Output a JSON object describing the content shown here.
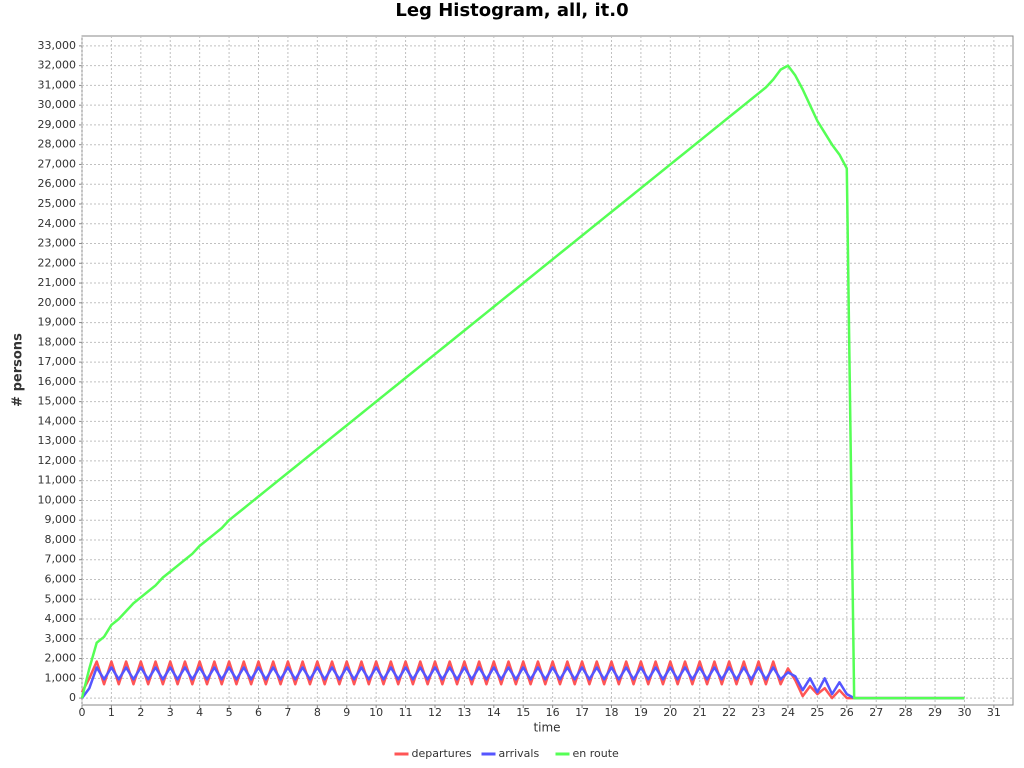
{
  "chart_data": {
    "type": "line",
    "title": "Leg Histogram, all, it.0",
    "x_label": "time",
    "y_label": "# persons",
    "x": [
      0,
      0.25,
      0.5,
      0.75,
      1,
      1.25,
      1.5,
      1.75,
      2,
      2.25,
      2.5,
      2.75,
      3,
      3.25,
      3.5,
      3.75,
      4,
      4.25,
      4.5,
      4.75,
      5,
      5.25,
      5.5,
      5.75,
      6,
      6.25,
      6.5,
      6.75,
      7,
      7.25,
      7.5,
      7.75,
      8,
      8.25,
      8.5,
      8.75,
      9,
      9.25,
      9.5,
      9.75,
      10,
      10.25,
      10.5,
      10.75,
      11,
      11.25,
      11.5,
      11.75,
      12,
      12.25,
      12.5,
      12.75,
      13,
      13.25,
      13.5,
      13.75,
      14,
      14.25,
      14.5,
      14.75,
      15,
      15.25,
      15.5,
      15.75,
      16,
      16.25,
      16.5,
      16.75,
      17,
      17.25,
      17.5,
      17.75,
      18,
      18.25,
      18.5,
      18.75,
      19,
      19.25,
      19.5,
      19.75,
      20,
      20.25,
      20.5,
      20.75,
      21,
      21.25,
      21.5,
      21.75,
      22,
      22.25,
      22.5,
      22.75,
      23,
      23.25,
      23.5,
      23.75,
      24,
      24.25,
      24.5,
      24.75,
      25,
      25.25,
      25.5,
      25.75,
      26,
      26.25,
      30
    ],
    "series": [
      {
        "name": "departures",
        "color": "#ff5555",
        "values": [
          300,
          1000,
          1850,
          700,
          1850,
          700,
          1850,
          700,
          1850,
          700,
          1850,
          700,
          1850,
          700,
          1850,
          700,
          1850,
          700,
          1850,
          700,
          1850,
          700,
          1850,
          700,
          1850,
          700,
          1850,
          700,
          1850,
          700,
          1850,
          700,
          1850,
          700,
          1850,
          700,
          1850,
          700,
          1850,
          700,
          1850,
          700,
          1850,
          700,
          1850,
          700,
          1850,
          700,
          1850,
          700,
          1850,
          700,
          1850,
          700,
          1850,
          700,
          1850,
          700,
          1850,
          700,
          1850,
          700,
          1850,
          700,
          1850,
          700,
          1850,
          700,
          1850,
          700,
          1850,
          700,
          1850,
          700,
          1850,
          700,
          1850,
          700,
          1850,
          700,
          1850,
          700,
          1850,
          700,
          1850,
          700,
          1850,
          700,
          1850,
          700,
          1850,
          700,
          1850,
          700,
          1850,
          700,
          1500,
          900,
          100,
          600,
          200,
          500,
          0,
          400,
          0,
          0,
          0
        ]
      },
      {
        "name": "arrivals",
        "color": "#5555ff",
        "values": [
          0,
          500,
          1550,
          950,
          1550,
          950,
          1550,
          950,
          1550,
          950,
          1550,
          950,
          1550,
          950,
          1550,
          950,
          1550,
          950,
          1550,
          950,
          1550,
          950,
          1550,
          950,
          1550,
          950,
          1550,
          950,
          1550,
          950,
          1550,
          950,
          1550,
          950,
          1550,
          950,
          1550,
          950,
          1550,
          950,
          1550,
          950,
          1550,
          950,
          1550,
          950,
          1550,
          950,
          1550,
          950,
          1550,
          950,
          1550,
          950,
          1550,
          950,
          1550,
          950,
          1550,
          950,
          1550,
          950,
          1550,
          950,
          1550,
          950,
          1550,
          950,
          1550,
          950,
          1550,
          950,
          1550,
          950,
          1550,
          950,
          1550,
          950,
          1550,
          950,
          1550,
          950,
          1550,
          950,
          1550,
          950,
          1550,
          950,
          1550,
          950,
          1550,
          950,
          1550,
          950,
          1550,
          950,
          1300,
          1100,
          400,
          1000,
          300,
          1000,
          200,
          800,
          200,
          0,
          0
        ]
      },
      {
        "name": "en route",
        "color": "#55ff55",
        "values": [
          0,
          1500,
          2800,
          3100,
          3700,
          4000,
          4400,
          4800,
          5100,
          5400,
          5700,
          6100,
          6400,
          6700,
          7000,
          7300,
          7700,
          8000,
          8300,
          8600,
          9000,
          9300,
          9600,
          9900,
          10200,
          10500,
          10800,
          11100,
          11400,
          11700,
          12000,
          12300,
          12600,
          12900,
          13200,
          13500,
          13800,
          14100,
          14400,
          14700,
          15000,
          15300,
          15600,
          15900,
          16200,
          16500,
          16800,
          17100,
          17400,
          17700,
          18000,
          18300,
          18600,
          18900,
          19200,
          19500,
          19800,
          20100,
          20400,
          20700,
          21000,
          21300,
          21600,
          21900,
          22200,
          22500,
          22800,
          23100,
          23400,
          23700,
          24000,
          24300,
          24600,
          24900,
          25200,
          25500,
          25800,
          26100,
          26400,
          26700,
          27000,
          27300,
          27600,
          27900,
          28200,
          28500,
          28800,
          29100,
          29400,
          29700,
          30000,
          30300,
          30600,
          30900,
          31300,
          31800,
          32000,
          31500,
          30800,
          30000,
          29200,
          28600,
          28000,
          27500,
          26800,
          0,
          0
        ]
      }
    ],
    "xlim": [
      0,
      31.65
    ],
    "ylim": [
      -350,
      33500
    ],
    "xticks": [
      0,
      1,
      2,
      3,
      4,
      5,
      6,
      7,
      8,
      9,
      10,
      11,
      12,
      13,
      14,
      15,
      16,
      17,
      18,
      19,
      20,
      21,
      22,
      23,
      24,
      25,
      26,
      27,
      28,
      29,
      30,
      31
    ],
    "yticks": [
      0,
      {
        "value": 1000,
        "label": "1,000"
      },
      {
        "value": 2000,
        "label": "2,000"
      },
      {
        "value": 3000,
        "label": "3,000"
      },
      {
        "value": 4000,
        "label": "4,000"
      },
      {
        "value": 5000,
        "label": "5,000"
      },
      {
        "value": 6000,
        "label": "6,000"
      },
      {
        "value": 7000,
        "label": "7,000"
      },
      {
        "value": 8000,
        "label": "8,000"
      },
      {
        "value": 9000,
        "label": "9,000"
      },
      {
        "value": 10000,
        "label": "10,000"
      },
      {
        "value": 11000,
        "label": "11,000"
      },
      {
        "value": 12000,
        "label": "12,000"
      },
      {
        "value": 13000,
        "label": "13,000"
      },
      {
        "value": 14000,
        "label": "14,000"
      },
      {
        "value": 15000,
        "label": "15,000"
      },
      {
        "value": 16000,
        "label": "16,000"
      },
      {
        "value": 17000,
        "label": "17,000"
      },
      {
        "value": 18000,
        "label": "18,000"
      },
      {
        "value": 19000,
        "label": "19,000"
      },
      {
        "value": 20000,
        "label": "20,000"
      },
      {
        "value": 21000,
        "label": "21,000"
      },
      {
        "value": 22000,
        "label": "22,000"
      },
      {
        "value": 23000,
        "label": "23,000"
      },
      {
        "value": 24000,
        "label": "24,000"
      },
      {
        "value": 25000,
        "label": "25,000"
      },
      {
        "value": 26000,
        "label": "26,000"
      },
      {
        "value": 27000,
        "label": "27,000"
      },
      {
        "value": 28000,
        "label": "28,000"
      },
      {
        "value": 29000,
        "label": "29,000"
      },
      {
        "value": 30000,
        "label": "30,000"
      },
      {
        "value": 31000,
        "label": "31,000"
      },
      {
        "value": 32000,
        "label": "32,000"
      },
      {
        "value": 33000,
        "label": "33,000"
      }
    ],
    "grid": true,
    "legend": "bottom"
  }
}
